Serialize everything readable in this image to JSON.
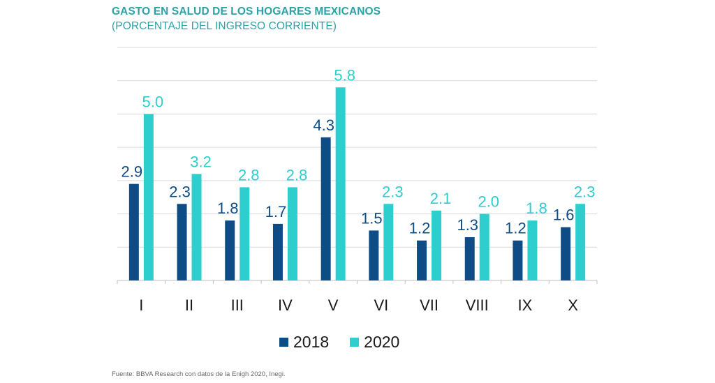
{
  "colors": {
    "s2018": "#0E4C85",
    "s2020": "#2ECECE",
    "grid": "#D9D9D9",
    "axis": "#BFBFBF"
  },
  "chart_data": {
    "type": "bar",
    "title": "GASTO EN SALUD DE LOS HOGARES MEXICANOS",
    "subtitle": "(PORCENTAJE DEL INGRESO CORRIENTE)",
    "xlabel": "",
    "ylabel": "",
    "ylim": [
      0,
      7
    ],
    "grid": true,
    "legend_position": "bottom-center",
    "categories": [
      "I",
      "II",
      "III",
      "IV",
      "V",
      "VI",
      "VII",
      "VIII",
      "IX",
      "X"
    ],
    "series": [
      {
        "name": "2018",
        "values": [
          2.9,
          2.3,
          1.8,
          1.7,
          4.3,
          1.5,
          1.2,
          1.3,
          1.2,
          1.6
        ],
        "labels": [
          "2.9",
          "2.3",
          "1.8",
          "1.7",
          "4.3",
          "1.5",
          "1.2",
          "1.3",
          "1.2",
          "1.6"
        ]
      },
      {
        "name": "2020",
        "values": [
          5.0,
          3.2,
          2.8,
          2.8,
          5.8,
          2.3,
          2.1,
          2.0,
          1.8,
          2.3
        ],
        "labels": [
          "5.0",
          "3.2",
          "2.8",
          "2.8",
          "5.8",
          "2.3",
          "2.1",
          "2.0",
          "1.8",
          "2.3"
        ]
      }
    ]
  },
  "source": "Fuente: BBVA Research con datos de la Enigh 2020, Inegi."
}
